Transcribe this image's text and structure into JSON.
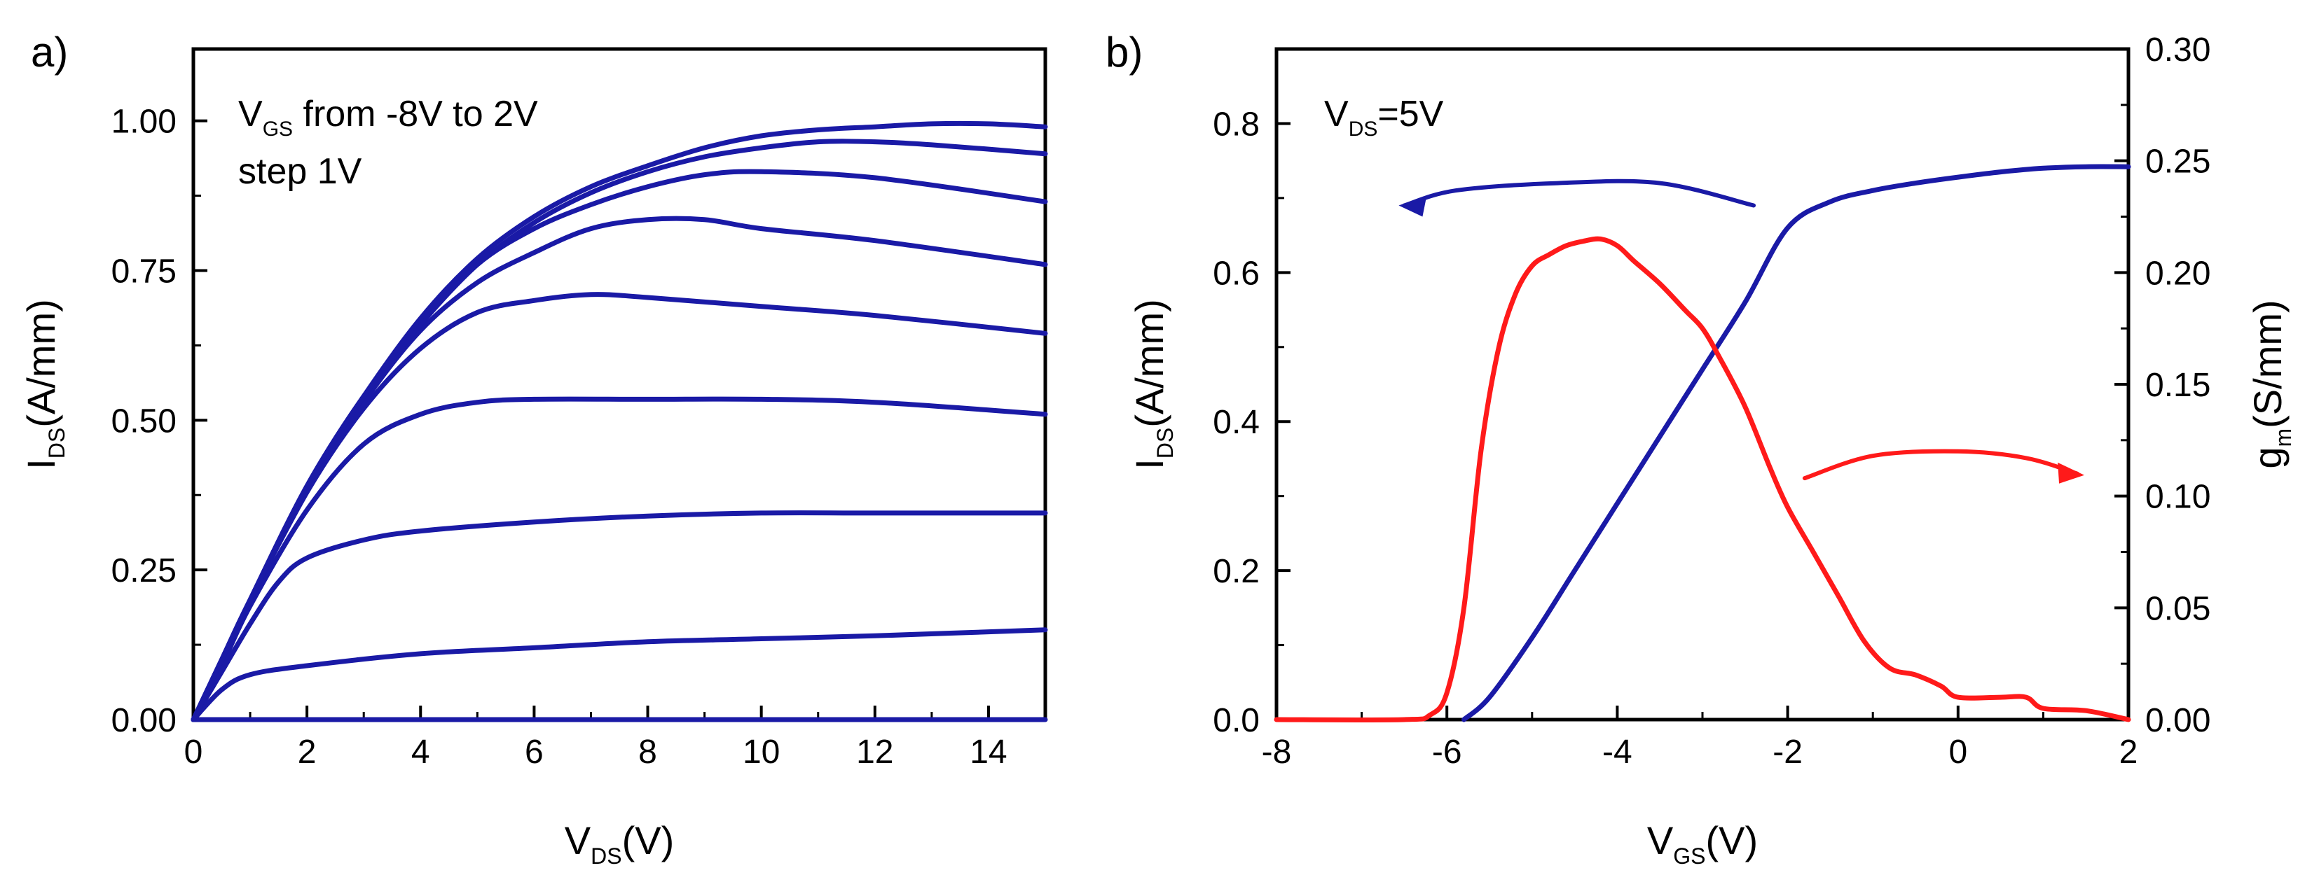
{
  "colors": {
    "blue": "#1a1aa6",
    "red": "#ff1a1a",
    "axis": "#000000"
  },
  "chart_data": [
    {
      "panel_label": "a)",
      "type": "line",
      "xlabel": {
        "main": "V",
        "sub": "DS",
        "tail": "(V)"
      },
      "ylabel": {
        "main": "I",
        "sub": "DS",
        "tail": "(A/mm)"
      },
      "xlim": [
        0,
        15
      ],
      "ylim": [
        0,
        1.12
      ],
      "x_ticks": [
        "0",
        "2",
        "4",
        "6",
        "8",
        "10",
        "12",
        "14"
      ],
      "y_ticks": [
        "0.00",
        "0.25",
        "0.50",
        "0.75",
        "1.00"
      ],
      "annotation": {
        "line1_main": "V",
        "line1_sub": "GS",
        "line1_tail": " from -8V to 2V",
        "line2": "step 1V"
      },
      "series": [
        {
          "vgs": -8,
          "x": [
            0,
            15
          ],
          "y": [
            0,
            0
          ]
        },
        {
          "vgs": -7,
          "x": [
            0,
            0.5,
            1,
            2,
            4,
            6,
            8,
            10,
            12,
            15
          ],
          "y": [
            0,
            0.05,
            0.075,
            0.09,
            0.11,
            0.12,
            0.13,
            0.135,
            0.14,
            0.15
          ]
        },
        {
          "vgs": -6,
          "x": [
            0,
            0.5,
            1,
            1.5,
            2,
            3,
            4,
            6,
            8,
            10,
            12,
            15
          ],
          "y": [
            0,
            0.08,
            0.16,
            0.23,
            0.27,
            0.3,
            0.315,
            0.33,
            0.34,
            0.345,
            0.345,
            0.345
          ]
        },
        {
          "vgs": -5,
          "x": [
            0,
            0.5,
            1,
            2,
            3,
            4,
            5,
            6,
            8,
            10,
            12,
            15
          ],
          "y": [
            0,
            0.09,
            0.19,
            0.35,
            0.46,
            0.51,
            0.53,
            0.535,
            0.535,
            0.535,
            0.53,
            0.51
          ]
        },
        {
          "vgs": -4,
          "x": [
            0,
            0.5,
            1,
            2,
            3,
            4,
            5,
            6,
            7,
            8,
            10,
            12,
            15
          ],
          "y": [
            0,
            0.1,
            0.2,
            0.38,
            0.52,
            0.62,
            0.68,
            0.7,
            0.71,
            0.705,
            0.69,
            0.675,
            0.645
          ]
        },
        {
          "vgs": -3,
          "x": [
            0,
            0.5,
            1,
            2,
            3,
            4,
            5,
            6,
            7,
            8,
            9,
            10,
            12,
            15
          ],
          "y": [
            0,
            0.1,
            0.2,
            0.38,
            0.53,
            0.65,
            0.73,
            0.78,
            0.82,
            0.835,
            0.835,
            0.82,
            0.8,
            0.76
          ]
        },
        {
          "vgs": -2,
          "x": [
            0,
            0.5,
            1,
            2,
            3,
            4,
            5,
            6,
            7,
            8,
            9,
            10,
            12,
            15
          ],
          "y": [
            0,
            0.1,
            0.2,
            0.39,
            0.54,
            0.66,
            0.76,
            0.82,
            0.86,
            0.89,
            0.91,
            0.915,
            0.905,
            0.865
          ]
        },
        {
          "vgs": -1,
          "x": [
            0,
            0.5,
            1,
            2,
            3,
            4,
            5,
            6,
            7,
            8,
            9,
            10,
            11,
            12,
            13,
            15
          ],
          "y": [
            0,
            0.1,
            0.2,
            0.39,
            0.54,
            0.66,
            0.76,
            0.83,
            0.88,
            0.915,
            0.94,
            0.955,
            0.965,
            0.965,
            0.96,
            0.945
          ]
        },
        {
          "vgs": 0,
          "x": [
            0,
            0.5,
            1,
            2,
            3,
            4,
            5,
            6,
            7,
            8,
            9,
            10,
            11,
            12,
            13,
            14,
            15
          ],
          "y": [
            0,
            0.1,
            0.2,
            0.39,
            0.54,
            0.67,
            0.77,
            0.84,
            0.89,
            0.925,
            0.955,
            0.975,
            0.985,
            0.99,
            0.995,
            0.995,
            0.99
          ]
        }
      ]
    },
    {
      "panel_label": "b)",
      "type": "line",
      "xlabel": {
        "main": "V",
        "sub": "GS",
        "tail": "(V)"
      },
      "ylabel_left": {
        "main": "I",
        "sub": "DS",
        "tail": "(A/mm)"
      },
      "ylabel_right": {
        "main": "g",
        "sub": "m",
        "tail": "(S/mm)"
      },
      "xlim": [
        -8,
        2
      ],
      "ylim_left": [
        0,
        0.9
      ],
      "ylim_right": [
        0,
        0.3
      ],
      "x_ticks": [
        "-8",
        "-6",
        "-4",
        "-2",
        "0",
        "2"
      ],
      "y_ticks_left": [
        "0.0",
        "0.2",
        "0.4",
        "0.6",
        "0.8"
      ],
      "y_ticks_right": [
        "0.00",
        "0.05",
        "0.10",
        "0.15",
        "0.20",
        "0.25",
        "0.30"
      ],
      "annotation": {
        "main": "V",
        "sub": "DS",
        "tail": "=5V"
      },
      "series": [
        {
          "axis": "left",
          "color_key": "blue",
          "x": [
            -5.8,
            -5.5,
            -5.0,
            -4.5,
            -4.0,
            -3.5,
            -3.0,
            -2.5,
            -2.0,
            -1.5,
            -1.0,
            -0.5,
            0.0,
            0.5,
            1.0,
            1.5,
            2.0
          ],
          "y": [
            0.0,
            0.03,
            0.11,
            0.2,
            0.29,
            0.38,
            0.47,
            0.56,
            0.66,
            0.695,
            0.71,
            0.72,
            0.728,
            0.735,
            0.74,
            0.742,
            0.742
          ]
        },
        {
          "axis": "right",
          "color_key": "red",
          "x": [
            -8.0,
            -6.5,
            -6.2,
            -6.0,
            -5.8,
            -5.6,
            -5.4,
            -5.2,
            -5.0,
            -4.8,
            -4.6,
            -4.4,
            -4.2,
            -4.0,
            -3.8,
            -3.5,
            -3.2,
            -3.0,
            -2.8,
            -2.5,
            -2.2,
            -2.0,
            -1.7,
            -1.4,
            -1.1,
            -0.8,
            -0.5,
            -0.2,
            0.0,
            0.5,
            0.8,
            1.0,
            1.5,
            2.0
          ],
          "y": [
            0.0,
            0.0,
            0.002,
            0.012,
            0.05,
            0.12,
            0.165,
            0.19,
            0.203,
            0.208,
            0.212,
            0.214,
            0.215,
            0.212,
            0.205,
            0.195,
            0.183,
            0.175,
            0.162,
            0.14,
            0.112,
            0.095,
            0.075,
            0.055,
            0.035,
            0.023,
            0.02,
            0.015,
            0.01,
            0.01,
            0.01,
            0.005,
            0.004,
            0.0
          ]
        }
      ]
    }
  ]
}
